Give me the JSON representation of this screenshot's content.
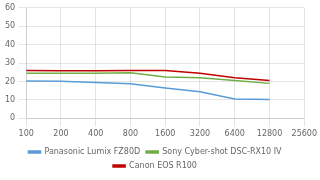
{
  "chart_data": {
    "type": "line",
    "x": [
      100,
      200,
      400,
      800,
      1600,
      3200,
      6400,
      12800
    ],
    "series": [
      {
        "name": "Panasonic Lumix FZ80D",
        "color": "#5b9bd5",
        "values": [
          20.3,
          20.2,
          19.5,
          18.8,
          16.5,
          14.5,
          10.5,
          10.2
        ]
      },
      {
        "name": "Sony Cyber-shot DSC-RX10 IV",
        "color": "#70ad47",
        "values": [
          24.5,
          24.5,
          24.5,
          24.8,
          22.5,
          22.0,
          20.5,
          19.0
        ]
      },
      {
        "name": "Canon EOS R100",
        "color": "#c00000",
        "values": [
          26.0,
          25.8,
          25.8,
          26.0,
          26.0,
          24.5,
          22.0,
          20.5
        ]
      }
    ],
    "xlim": [
      100,
      25600
    ],
    "xticks": [
      100,
      200,
      400,
      800,
      1600,
      3200,
      6400,
      12800,
      25600
    ],
    "ylim": [
      0,
      60
    ],
    "yticks": [
      0,
      10,
      20,
      30,
      40,
      50,
      60
    ],
    "log": "x",
    "grid": true,
    "legend": "bottom"
  }
}
